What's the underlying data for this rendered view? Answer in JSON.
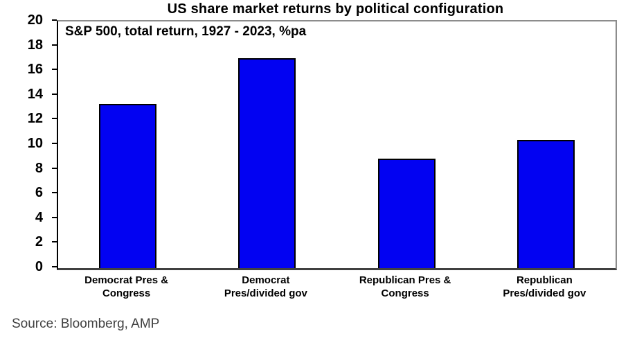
{
  "title": "US share market returns by political configuration",
  "subtitle": "S&P 500, total return, 1927 - 2023, %pa",
  "source": "Source: Bloomberg, AMP",
  "chart_data": {
    "type": "bar",
    "title": "US share market returns by political configuration",
    "subtitle": "S&P 500, total return, 1927 - 2023, %pa",
    "categories": [
      "Democrat Pres &\nCongress",
      "Democrat\nPres/divided gov",
      "Republican Pres &\nCongress",
      "Republican\nPres/divided gov"
    ],
    "values": [
      13.3,
      17.0,
      8.9,
      10.4
    ],
    "xlabel": "",
    "ylabel": "",
    "ylim": [
      0,
      20
    ],
    "y_ticks": [
      0,
      2,
      4,
      6,
      8,
      10,
      12,
      14,
      16,
      18,
      20
    ],
    "grid": false,
    "legend": "none",
    "bar_color": "#0202F2",
    "bar_border_color": "#000000",
    "source": "Source: Bloomberg, AMP"
  }
}
